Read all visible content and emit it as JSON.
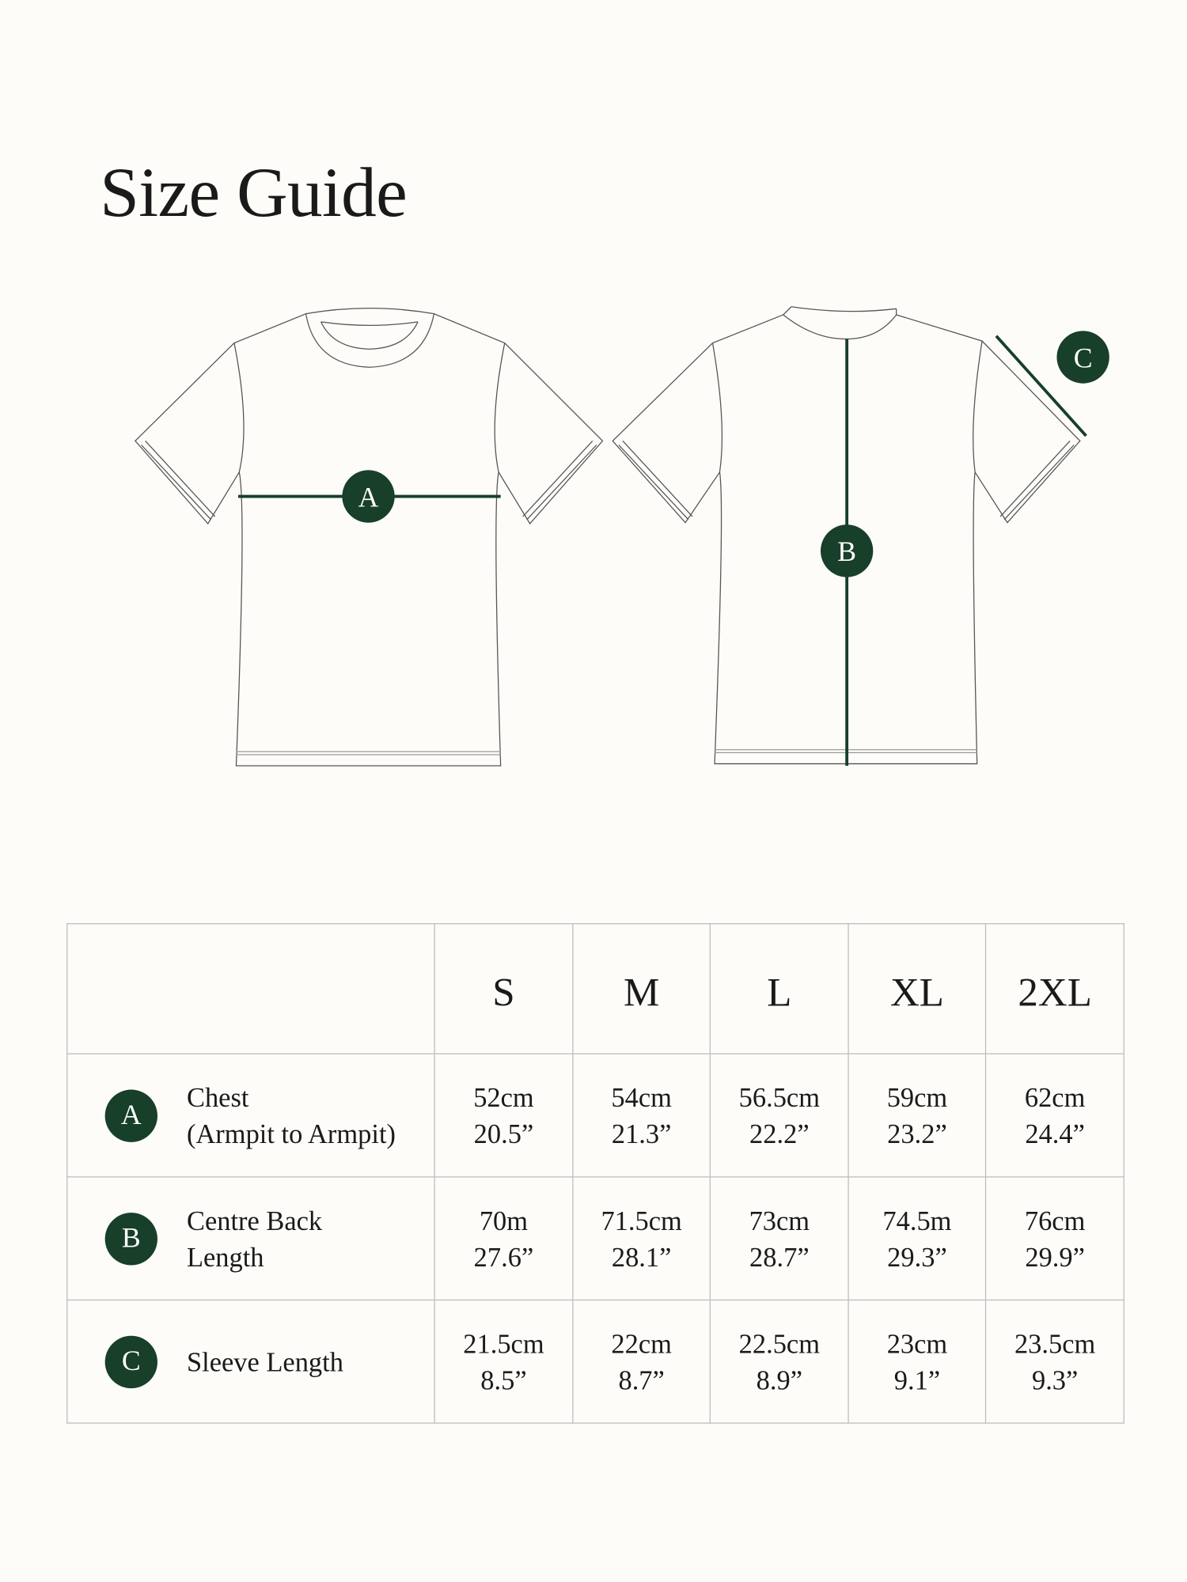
{
  "title": "Size Guide",
  "accent_color": "#173f2a",
  "diagram": {
    "front_marker": "A",
    "back_marker": "B",
    "sleeve_marker": "C"
  },
  "table": {
    "sizes": [
      "S",
      "M",
      "L",
      "XL",
      "2XL"
    ],
    "rows": [
      {
        "marker": "A",
        "label_line1": "Chest",
        "label_line2": "(Armpit to Armpit)",
        "values": [
          [
            "52cm",
            "20.5”"
          ],
          [
            "54cm",
            "21.3”"
          ],
          [
            "56.5cm",
            "22.2”"
          ],
          [
            "59cm",
            "23.2”"
          ],
          [
            "62cm",
            "24.4”"
          ]
        ]
      },
      {
        "marker": "B",
        "label_line1": "Centre Back",
        "label_line2": "Length",
        "values": [
          [
            "70m",
            "27.6”"
          ],
          [
            "71.5cm",
            "28.1”"
          ],
          [
            "73cm",
            "28.7”"
          ],
          [
            "74.5m",
            "29.3”"
          ],
          [
            "76cm",
            "29.9”"
          ]
        ]
      },
      {
        "marker": "C",
        "label_line1": "Sleeve Length",
        "label_line2": "",
        "values": [
          [
            "21.5cm",
            "8.5”"
          ],
          [
            "22cm",
            "8.7”"
          ],
          [
            "22.5cm",
            "8.9”"
          ],
          [
            "23cm",
            "9.1”"
          ],
          [
            "23.5cm",
            "9.3”"
          ]
        ]
      }
    ]
  }
}
